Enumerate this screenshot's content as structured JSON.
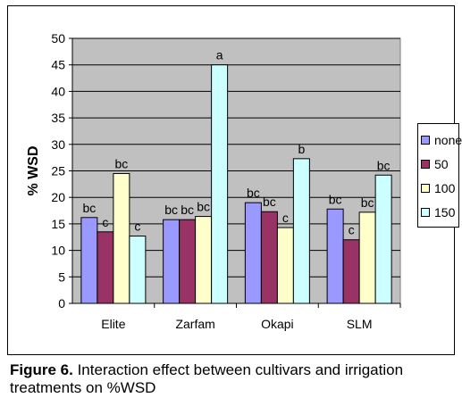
{
  "chart_data": {
    "type": "bar",
    "title": "",
    "xlabel": "",
    "ylabel": "% WSD",
    "ylim": [
      0,
      50
    ],
    "yticks": [
      0,
      5,
      10,
      15,
      20,
      25,
      30,
      35,
      40,
      45,
      50
    ],
    "grid": true,
    "legend_position": "right",
    "categories": [
      "Elite",
      "Zarfam",
      "Okapi",
      "SLM"
    ],
    "series": [
      {
        "name": "none",
        "color": "#9999ff",
        "values": [
          16.2,
          15.8,
          19.0,
          17.8
        ],
        "labels": [
          "bc",
          "bc",
          "bc",
          "bc"
        ]
      },
      {
        "name": "50",
        "color": "#993366",
        "values": [
          13.5,
          15.8,
          17.3,
          12.0
        ],
        "labels": [
          "c",
          "bc",
          "bc",
          "c"
        ]
      },
      {
        "name": "100",
        "color": "#ffffcc",
        "values": [
          24.5,
          16.4,
          14.3,
          17.2
        ],
        "labels": [
          "bc",
          "bc",
          "c",
          "bc"
        ]
      },
      {
        "name": "150",
        "color": "#ccffff",
        "values": [
          12.7,
          45.0,
          27.3,
          24.2
        ],
        "labels": [
          "c",
          "a",
          "b",
          "bc"
        ]
      }
    ],
    "plot_background": "#c0c0c0"
  },
  "caption": {
    "label": "Figure 6.",
    "text": " Interaction effect between cultivars and irrigation treatments on %WSD"
  }
}
